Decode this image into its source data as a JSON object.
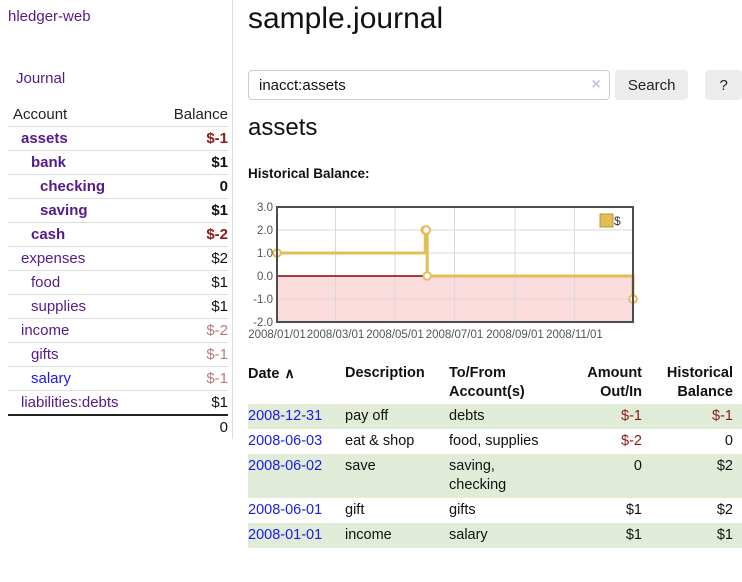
{
  "colors": {
    "purple_link": "#551a8b",
    "blue_link": "#1a1ae6",
    "negative_strong": "#8b1a1a",
    "negative_muted": "#bb7a7a",
    "row_green": "#e0ecd8",
    "button_bg": "#ececec",
    "chart_line": "#e3bd55",
    "chart_negative_fill": "#fbdcdc",
    "chart_zero_line": "#8b0000",
    "chart_border": "#4d4d4d",
    "chart_grid": "#d9d9d9",
    "axis_text": "#555555"
  },
  "sidebar": {
    "brand": "hledger-web",
    "journal_link": "Journal",
    "accounts_table": {
      "col_account": "Account",
      "col_balance": "Balance",
      "rows": [
        {
          "name": "assets",
          "balance": "$-1",
          "level": 1,
          "bold": true,
          "balance_tone": "neg-strong",
          "link_color": "purple"
        },
        {
          "name": "bank",
          "balance": "$1",
          "level": 2,
          "bold": true,
          "balance_tone": "normal",
          "link_color": "purple"
        },
        {
          "name": "checking",
          "balance": "0",
          "level": 3,
          "bold": true,
          "balance_tone": "normal",
          "link_color": "purple"
        },
        {
          "name": "saving",
          "balance": "$1",
          "level": 3,
          "bold": true,
          "balance_tone": "normal",
          "link_color": "purple"
        },
        {
          "name": "cash",
          "balance": "$-2",
          "level": 2,
          "bold": true,
          "balance_tone": "neg-strong",
          "link_color": "purple"
        },
        {
          "name": "expenses",
          "balance": "$2",
          "level": 1,
          "bold": false,
          "balance_tone": "normal",
          "link_color": "purple"
        },
        {
          "name": "food",
          "balance": "$1",
          "level": 2,
          "bold": false,
          "balance_tone": "normal",
          "link_color": "purple"
        },
        {
          "name": "supplies",
          "balance": "$1",
          "level": 2,
          "bold": false,
          "balance_tone": "normal",
          "link_color": "purple"
        },
        {
          "name": "income",
          "balance": "$-2",
          "level": 1,
          "bold": false,
          "balance_tone": "neg-muted",
          "link_color": "purple"
        },
        {
          "name": "gifts",
          "balance": "$-1",
          "level": 2,
          "bold": false,
          "balance_tone": "neg-muted",
          "link_color": "purple"
        },
        {
          "name": "salary",
          "balance": "$-1",
          "level": 2,
          "bold": false,
          "balance_tone": "neg-muted",
          "link_color": "blue"
        },
        {
          "name": "liabilities:debts",
          "balance": "$1",
          "level": 1,
          "bold": false,
          "balance_tone": "normal",
          "link_color": "purple"
        }
      ],
      "total": "0"
    }
  },
  "main": {
    "title": "sample.journal",
    "search": {
      "value": "inacct:assets",
      "clear_icon": "×",
      "search_button": "Search",
      "help_button": "?"
    },
    "account_heading": "assets",
    "section_label": "Historical Balance:"
  },
  "chart_data": {
    "type": "line",
    "step": true,
    "title": "Historical Balance",
    "series": [
      {
        "name": "$",
        "color": "#e3bd55",
        "points": [
          [
            "2008-01-01",
            1
          ],
          [
            "2008-06-01",
            2
          ],
          [
            "2008-06-02",
            2
          ],
          [
            "2008-06-03",
            0
          ],
          [
            "2008-12-31",
            -1
          ]
        ]
      }
    ],
    "x_domain": [
      "2008-01-01",
      "2008-12-31"
    ],
    "ylim": [
      -2,
      3
    ],
    "yticks": [
      {
        "value": 3,
        "label": "3.0"
      },
      {
        "value": 2,
        "label": "2.0"
      },
      {
        "value": 1,
        "label": "1.0"
      },
      {
        "value": 0,
        "label": "0.0"
      },
      {
        "value": -1,
        "label": "-1.0"
      },
      {
        "value": -2,
        "label": "-2.0"
      }
    ],
    "xticks": [
      {
        "date": "2008-01-01",
        "label": "2008/01/01"
      },
      {
        "date": "2008-03-01",
        "label": "2008/03/01"
      },
      {
        "date": "2008-05-01",
        "label": "2008/05/01"
      },
      {
        "date": "2008-07-01",
        "label": "2008/07/01"
      },
      {
        "date": "2008-09-01",
        "label": "2008/09/01"
      },
      {
        "date": "2008-11-01",
        "label": "2008/11/01"
      }
    ],
    "grid": true,
    "legend": {
      "label": "$",
      "position": "top-right"
    }
  },
  "register_table": {
    "headers": {
      "date": "Date",
      "sort_icon": "∧",
      "description": "Description",
      "account_line1": "To/From",
      "account_line2": "Account(s)",
      "amount_line1": "Amount",
      "amount_line2": "Out/In",
      "balance_line1": "Historical",
      "balance_line2": "Balance"
    },
    "rows": [
      {
        "date": "2008-12-31",
        "description": "pay off",
        "accounts": "debts",
        "amount": "$-1",
        "amount_negative": true,
        "balance": "$-1",
        "balance_negative": true
      },
      {
        "date": "2008-06-03",
        "description": "eat & shop",
        "accounts": "food, supplies",
        "amount": "$-2",
        "amount_negative": true,
        "balance": "0",
        "balance_negative": false
      },
      {
        "date": "2008-06-02",
        "description": "save",
        "accounts": "saving, checking",
        "amount": "0",
        "amount_negative": false,
        "balance": "$2",
        "balance_negative": false
      },
      {
        "date": "2008-06-01",
        "description": "gift",
        "accounts": "gifts",
        "amount": "$1",
        "amount_negative": false,
        "balance": "$2",
        "balance_negative": false
      },
      {
        "date": "2008-01-01",
        "description": "income",
        "accounts": "salary",
        "amount": "$1",
        "amount_negative": false,
        "balance": "$1",
        "balance_negative": false
      }
    ]
  }
}
